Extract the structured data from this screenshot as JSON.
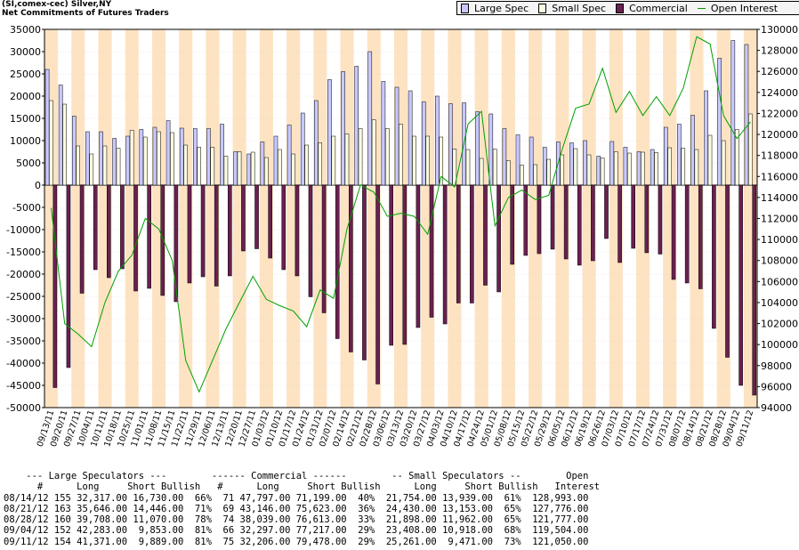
{
  "title_lines": [
    "(SI,comex-cec) Silver,NY",
    "Net Commitments of Futures Traders"
  ],
  "legend": [
    {
      "label": "Large Spec",
      "kind": "bar",
      "color": "#c8c8ff"
    },
    {
      "label": "Small Spec",
      "kind": "bar",
      "color": "#fcfce0"
    },
    {
      "label": "Commercial",
      "kind": "bar",
      "color": "#6a2050"
    },
    {
      "label": "Open Interest",
      "kind": "line",
      "color": "#00a000"
    }
  ],
  "chart_data": {
    "type": "bar",
    "categories": [
      "09/13/11",
      "09/20/11",
      "09/27/11",
      "10/04/11",
      "10/11/11",
      "10/18/11",
      "10/25/11",
      "11/01/11",
      "11/08/11",
      "11/15/11",
      "11/22/11",
      "11/29/11",
      "12/06/11",
      "12/13/11",
      "12/20/11",
      "12/27/11",
      "01/03/12",
      "01/10/12",
      "01/17/12",
      "01/24/12",
      "01/31/12",
      "02/07/12",
      "02/14/12",
      "02/21/12",
      "02/28/12",
      "03/06/12",
      "03/13/12",
      "03/20/12",
      "03/27/12",
      "04/03/12",
      "04/10/12",
      "04/17/12",
      "04/24/12",
      "05/01/12",
      "05/08/12",
      "05/15/12",
      "05/22/12",
      "05/29/12",
      "06/05/12",
      "06/12/12",
      "06/19/12",
      "06/26/12",
      "07/03/12",
      "07/10/12",
      "07/17/12",
      "07/24/12",
      "07/31/12",
      "08/07/12",
      "08/14/12",
      "08/21/12",
      "08/28/12",
      "09/04/12",
      "09/11/12"
    ],
    "x_tick_labels": [
      "09/13/11",
      "09/20/11",
      "09/27/11",
      "10/04/11",
      "10/11/11",
      "10/18/11",
      "10/25/11",
      "11/01/11",
      "11/08/11",
      "11/15/11",
      "11/22/11",
      "11/29/11",
      "12/06/11",
      "12/13/11",
      "12/20/11",
      "12/27/11",
      "01/03/12",
      "01/10/12",
      "01/17/12",
      "01/24/12",
      "01/31/12",
      "02/07/12",
      "02/14/12",
      "02/21/12",
      "02/28/12",
      "03/06/12",
      "03/13/12",
      "03/20/12",
      "03/27/12",
      "04/03/12",
      "04/10/12",
      "04/17/12",
      "04/24/12",
      "05/01/12",
      "05/08/12",
      "05/15/12",
      "05/22/12",
      "05/29/12",
      "06/05/12",
      "06/12/12",
      "06/19/12",
      "06/26/12",
      "07/03/12",
      "07/10/12",
      "07/17/12",
      "07/24/12",
      "07/31/12",
      "08/07/12",
      "08/14/12",
      "08/21/12",
      "08/28/12",
      "09/04/12",
      "09/11/12"
    ],
    "y_left_range": [
      -50000,
      35000
    ],
    "y_left_ticks": [
      35000,
      30000,
      25000,
      20000,
      15000,
      10000,
      5000,
      0,
      -5000,
      -10000,
      -15000,
      -20000,
      -25000,
      -30000,
      -35000,
      -40000,
      -45000,
      -50000
    ],
    "y_right_range": [
      94000,
      130000
    ],
    "y_right_ticks": [
      130000,
      128000,
      126000,
      124000,
      122000,
      120000,
      118000,
      116000,
      114000,
      112000,
      110000,
      108000,
      106000,
      104000,
      102000,
      100000,
      98000,
      96000,
      94000
    ],
    "series": [
      {
        "name": "Large Spec",
        "color": "#c8c8ff",
        "values": [
          26000,
          22500,
          15500,
          12000,
          12000,
          10500,
          11000,
          12500,
          13000,
          14500,
          12800,
          12700,
          12700,
          13700,
          7500,
          7000,
          9700,
          11000,
          13500,
          16200,
          19000,
          23700,
          25500,
          26700,
          30000,
          23300,
          22000,
          21200,
          18700,
          20000,
          18300,
          18500,
          16500,
          16000,
          12700,
          11300,
          10800,
          8500,
          9700,
          9500,
          10000,
          6500,
          9800,
          8500,
          7500,
          8000,
          13000,
          13700,
          15700,
          21200,
          28500,
          32500,
          31600
        ]
      },
      {
        "name": "Small Spec",
        "color": "#fcfce0",
        "values": [
          19000,
          18200,
          8800,
          7000,
          8800,
          8300,
          12300,
          10800,
          12000,
          11800,
          9000,
          8500,
          8500,
          6500,
          7500,
          7400,
          6200,
          8000,
          7000,
          9000,
          9500,
          11000,
          11500,
          12700,
          14700,
          12700,
          13700,
          11000,
          11000,
          10800,
          8100,
          8000,
          6000,
          8100,
          5500,
          4500,
          4600,
          5800,
          6800,
          8200,
          6800,
          6100,
          7500,
          7200,
          7400,
          7300,
          8400,
          8300,
          8000,
          11200,
          10000,
          12500,
          16000
        ]
      },
      {
        "name": "Commercial",
        "color": "#6a2050",
        "values": [
          -45500,
          -41000,
          -24300,
          -19000,
          -20800,
          -18800,
          -23800,
          -23200,
          -24800,
          -26200,
          -22000,
          -20600,
          -22700,
          -20400,
          -14800,
          -14300,
          -16400,
          -19000,
          -20400,
          -25100,
          -28700,
          -34500,
          -37500,
          -39300,
          -44700,
          -36000,
          -35800,
          -32000,
          -29700,
          -31200,
          -26500,
          -26500,
          -22500,
          -24000,
          -17800,
          -15800,
          -15400,
          -14400,
          -16600,
          -18000,
          -17000,
          -12000,
          -17400,
          -14200,
          -15200,
          -15500,
          -21200,
          -22000,
          -23300,
          -32200,
          -38700,
          -45000,
          -47200
        ]
      },
      {
        "name": "Open Interest",
        "color": "#00a000",
        "axis": "right",
        "values": [
          113000,
          102000,
          101000,
          99800,
          104000,
          107000,
          108500,
          112000,
          111000,
          108000,
          98500,
          95500,
          98500,
          101500,
          104000,
          106500,
          104300,
          103700,
          103200,
          101700,
          105200,
          104400,
          111000,
          115200,
          114500,
          112200,
          112500,
          112200,
          110500,
          116000,
          115000,
          121000,
          122200,
          111300,
          114000,
          114700,
          113800,
          114200,
          118600,
          122500,
          122900,
          126300,
          122100,
          124100,
          121800,
          123600,
          121800,
          124400,
          129300,
          128600,
          121800,
          119600,
          121200
        ]
      }
    ]
  },
  "table": {
    "header1": "    --- Large Speculators ---        ------ Commercial ------        -- Small Speculators --        Open",
    "header2": "      #      Long     Short Bullish   #      Long     Short Bullish      Long     Short Bullish   Interest",
    "rows": [
      "08/14/12 155 32,317.00 16,730.00  66%  71 47,797.00 71,199.00  40%  21,754.00 13,939.00  61%  128,993.00",
      "08/21/12 163 35,646.00 14,446.00  71%  69 43,146.00 75,623.00  36%  24,430.00 13,153.00  65%  127,776.00",
      "08/28/12 160 39,708.00 11,070.00  78%  74 38,039.00 76,613.00  33%  21,898.00 11,962.00  65%  121,777.00",
      "09/04/12 152 42,283.00  9,853.00  81%  66 32,297.00 77,217.00  29%  23,408.00 10,918.00  68%  119,504.00",
      "09/11/12 154 41,371.00  9,889.00  81%  75 32,206.00 79,478.00  29%  25,261.00  9,471.00  73%  121,050.00"
    ]
  }
}
